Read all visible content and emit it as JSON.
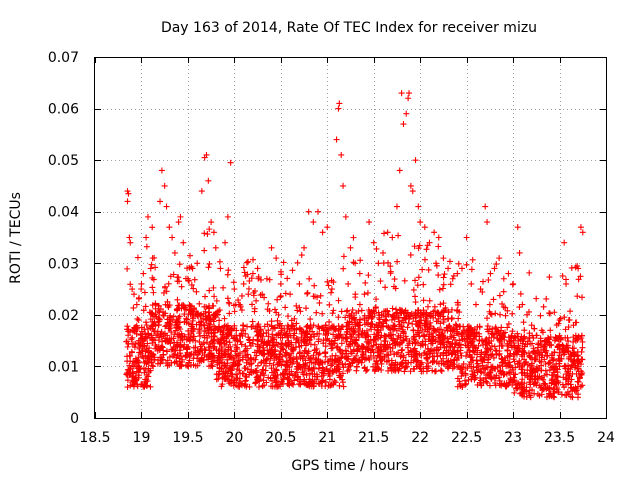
{
  "chart_data": {
    "type": "scatter",
    "title": "Day 163 of 2014, Rate Of TEC Index for receiver mizu",
    "xlabel": "GPS time / hours",
    "ylabel": "ROTI / TECUs",
    "xlim": [
      18.5,
      24
    ],
    "ylim": [
      0,
      0.07
    ],
    "x_ticks": [
      18.5,
      19,
      19.5,
      20,
      20.5,
      21,
      21.5,
      22,
      22.5,
      23,
      23.5,
      24
    ],
    "x_tick_labels": [
      "18.5",
      "19",
      "19.5",
      "20",
      "20.5",
      "21",
      "21.5",
      "22",
      "22.5",
      "23",
      "23.5",
      "24"
    ],
    "y_ticks": [
      0,
      0.01,
      0.02,
      0.03,
      0.04,
      0.05,
      0.06,
      0.07
    ],
    "y_tick_labels": [
      "0",
      "0.01",
      "0.02",
      "0.03",
      "0.04",
      "0.05",
      "0.06",
      "0.07"
    ],
    "grid": true,
    "marker": "+",
    "point_color": "#ff0000",
    "x_data_range": [
      18.83,
      23.75
    ],
    "series": [
      {
        "name": "ROTI",
        "points": [
          [
            18.85,
            0.044
          ],
          [
            18.86,
            0.0435
          ],
          [
            18.85,
            0.042
          ],
          [
            18.87,
            0.035
          ],
          [
            18.88,
            0.034
          ],
          [
            18.9,
            0.025
          ],
          [
            18.92,
            0.024
          ],
          [
            18.95,
            0.022
          ],
          [
            18.97,
            0.019
          ],
          [
            19.0,
            0.026
          ],
          [
            19.02,
            0.028
          ],
          [
            19.05,
            0.035
          ],
          [
            19.07,
            0.039
          ],
          [
            19.1,
            0.029
          ],
          [
            19.12,
            0.031
          ],
          [
            19.15,
            0.022
          ],
          [
            19.2,
            0.042
          ],
          [
            19.22,
            0.048
          ],
          [
            19.25,
            0.045
          ],
          [
            19.27,
            0.041
          ],
          [
            19.3,
            0.037
          ],
          [
            19.33,
            0.035
          ],
          [
            19.36,
            0.032
          ],
          [
            19.4,
            0.038
          ],
          [
            19.42,
            0.039
          ],
          [
            19.45,
            0.034
          ],
          [
            19.5,
            0.027
          ],
          [
            19.55,
            0.029
          ],
          [
            19.6,
            0.03
          ],
          [
            19.65,
            0.044
          ],
          [
            19.68,
            0.0505
          ],
          [
            19.7,
            0.051
          ],
          [
            19.72,
            0.046
          ],
          [
            19.75,
            0.038
          ],
          [
            19.78,
            0.036
          ],
          [
            19.8,
            0.033
          ],
          [
            19.85,
            0.029
          ],
          [
            19.9,
            0.034
          ],
          [
            19.93,
            0.039
          ],
          [
            19.96,
            0.0495
          ],
          [
            20.0,
            0.025
          ],
          [
            20.05,
            0.022
          ],
          [
            20.1,
            0.026
          ],
          [
            20.15,
            0.024
          ],
          [
            20.2,
            0.028
          ],
          [
            20.25,
            0.029
          ],
          [
            20.3,
            0.024
          ],
          [
            20.35,
            0.027
          ],
          [
            20.4,
            0.033
          ],
          [
            20.45,
            0.031
          ],
          [
            20.5,
            0.026
          ],
          [
            20.6,
            0.024
          ],
          [
            20.7,
            0.026
          ],
          [
            20.75,
            0.033
          ],
          [
            20.8,
            0.04
          ],
          [
            20.85,
            0.038
          ],
          [
            20.9,
            0.04
          ],
          [
            20.95,
            0.036
          ],
          [
            21.0,
            0.037
          ],
          [
            21.05,
            0.025
          ],
          [
            21.1,
            0.054
          ],
          [
            21.12,
            0.06
          ],
          [
            21.13,
            0.061
          ],
          [
            21.15,
            0.051
          ],
          [
            21.17,
            0.045
          ],
          [
            21.2,
            0.039
          ],
          [
            21.25,
            0.033
          ],
          [
            21.3,
            0.03
          ],
          [
            21.35,
            0.028
          ],
          [
            21.4,
            0.024
          ],
          [
            21.45,
            0.038
          ],
          [
            21.5,
            0.034
          ],
          [
            21.55,
            0.03
          ],
          [
            21.6,
            0.032
          ],
          [
            21.65,
            0.036
          ],
          [
            21.7,
            0.035
          ],
          [
            21.75,
            0.041
          ],
          [
            21.78,
            0.048
          ],
          [
            21.8,
            0.063
          ],
          [
            21.82,
            0.057
          ],
          [
            21.85,
            0.059
          ],
          [
            21.87,
            0.062
          ],
          [
            21.88,
            0.063
          ],
          [
            21.9,
            0.045
          ],
          [
            21.92,
            0.044
          ],
          [
            21.95,
            0.05
          ],
          [
            21.98,
            0.041
          ],
          [
            22.0,
            0.038
          ],
          [
            22.05,
            0.037
          ],
          [
            22.1,
            0.034
          ],
          [
            22.15,
            0.036
          ],
          [
            22.2,
            0.035
          ],
          [
            22.25,
            0.031
          ],
          [
            22.3,
            0.029
          ],
          [
            22.35,
            0.027
          ],
          [
            22.4,
            0.028
          ],
          [
            22.45,
            0.029
          ],
          [
            22.5,
            0.035
          ],
          [
            22.55,
            0.026
          ],
          [
            22.6,
            0.022
          ],
          [
            22.65,
            0.025
          ],
          [
            22.7,
            0.041
          ],
          [
            22.72,
            0.038
          ],
          [
            22.75,
            0.022
          ],
          [
            22.8,
            0.029
          ],
          [
            22.85,
            0.031
          ],
          [
            22.9,
            0.027
          ],
          [
            22.95,
            0.028
          ],
          [
            23.0,
            0.026
          ],
          [
            23.05,
            0.037
          ],
          [
            23.07,
            0.032
          ],
          [
            23.1,
            0.022
          ],
          [
            23.15,
            0.02
          ],
          [
            23.2,
            0.018
          ],
          [
            23.25,
            0.016
          ],
          [
            23.3,
            0.014
          ],
          [
            23.35,
            0.015
          ],
          [
            23.4,
            0.017
          ],
          [
            23.45,
            0.015
          ],
          [
            23.5,
            0.019
          ],
          [
            23.55,
            0.034
          ],
          [
            23.57,
            0.026
          ],
          [
            23.6,
            0.019
          ],
          [
            23.65,
            0.018
          ],
          [
            23.7,
            0.029
          ],
          [
            23.73,
            0.037
          ],
          [
            23.75,
            0.036
          ]
        ]
      }
    ]
  }
}
